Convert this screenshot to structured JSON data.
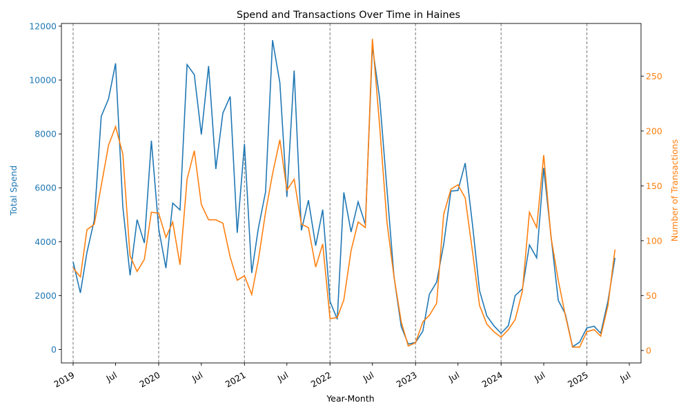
{
  "colors": {
    "spend": "#1f77b4",
    "transactions": "#ff7f0e",
    "axis": "#000000",
    "year_line": "#808080"
  },
  "chart_data": {
    "type": "line",
    "title": "Spend and Transactions Over Time in Haines",
    "xlabel": "Year-Month",
    "ylabel_left": "Total Spend",
    "ylabel_right": "Number of Transactions",
    "ylim_left": [
      -500,
      12100
    ],
    "ylim_right": [
      -11.4,
      298
    ],
    "yticks_left": [
      0,
      2000,
      4000,
      6000,
      8000,
      10000,
      12000
    ],
    "yticks_right": [
      0,
      50,
      100,
      150,
      200,
      250
    ],
    "xlim": [
      "2018-11-12",
      "2025-08-20"
    ],
    "xticks": [
      {
        "date": "2019-01-01",
        "label": "2019"
      },
      {
        "date": "2019-07-01",
        "label": "Jul"
      },
      {
        "date": "2020-01-01",
        "label": "2020"
      },
      {
        "date": "2020-07-01",
        "label": "Jul"
      },
      {
        "date": "2021-01-01",
        "label": "2021"
      },
      {
        "date": "2021-07-01",
        "label": "Jul"
      },
      {
        "date": "2022-01-01",
        "label": "2022"
      },
      {
        "date": "2022-07-01",
        "label": "Jul"
      },
      {
        "date": "2023-01-01",
        "label": "2023"
      },
      {
        "date": "2023-07-01",
        "label": "Jul"
      },
      {
        "date": "2024-01-01",
        "label": "2024"
      },
      {
        "date": "2024-07-01",
        "label": "Jul"
      },
      {
        "date": "2025-01-01",
        "label": "2025"
      },
      {
        "date": "2025-07-01",
        "label": "Jul"
      }
    ],
    "year_lines": [
      "2019-01-01",
      "2020-01-01",
      "2021-01-01",
      "2022-01-01",
      "2023-01-01",
      "2024-01-01",
      "2025-01-01"
    ],
    "x": [
      "2019-01-01",
      "2019-02-01",
      "2019-03-01",
      "2019-04-01",
      "2019-05-01",
      "2019-06-01",
      "2019-07-01",
      "2019-08-01",
      "2019-09-01",
      "2019-10-01",
      "2019-11-01",
      "2019-12-01",
      "2020-01-01",
      "2020-02-01",
      "2020-03-01",
      "2020-04-01",
      "2020-05-01",
      "2020-06-01",
      "2020-07-01",
      "2020-08-01",
      "2020-09-01",
      "2020-10-01",
      "2020-11-01",
      "2020-12-01",
      "2021-01-01",
      "2021-02-01",
      "2021-03-01",
      "2021-04-01",
      "2021-05-01",
      "2021-06-01",
      "2021-07-01",
      "2021-08-01",
      "2021-09-01",
      "2021-10-01",
      "2021-11-01",
      "2021-12-01",
      "2022-01-01",
      "2022-02-01",
      "2022-03-01",
      "2022-04-01",
      "2022-05-01",
      "2022-06-01",
      "2022-07-01",
      "2022-08-01",
      "2022-09-01",
      "2022-10-01",
      "2022-11-01",
      "2022-12-01",
      "2023-01-01",
      "2023-02-01",
      "2023-03-01",
      "2023-04-01",
      "2023-05-01",
      "2023-06-01",
      "2023-07-01",
      "2023-08-01",
      "2023-09-01",
      "2023-10-01",
      "2023-11-01",
      "2023-12-01",
      "2024-01-01",
      "2024-02-01",
      "2024-03-01",
      "2024-04-01",
      "2024-05-01",
      "2024-06-01",
      "2024-07-01",
      "2024-08-01",
      "2024-09-01",
      "2024-10-01",
      "2024-11-01",
      "2024-12-01",
      "2025-01-01",
      "2025-02-01",
      "2025-03-01",
      "2025-04-01",
      "2025-05-01"
    ],
    "series": [
      {
        "name": "Total Spend",
        "axis": "left",
        "values": [
          3250,
          2100,
          3600,
          4800,
          8650,
          9300,
          10620,
          5300,
          2750,
          4820,
          3950,
          7750,
          4480,
          3020,
          5430,
          5180,
          10570,
          10200,
          7980,
          10520,
          6700,
          8770,
          9390,
          4330,
          7630,
          2840,
          4480,
          5850,
          11480,
          9900,
          5660,
          10350,
          4420,
          5540,
          3850,
          5190,
          1780,
          1120,
          5830,
          4360,
          5480,
          4640,
          11250,
          9300,
          5950,
          2700,
          850,
          200,
          260,
          680,
          2050,
          2500,
          3900,
          5880,
          5900,
          6920,
          4630,
          2180,
          1250,
          880,
          600,
          880,
          2000,
          2250,
          3880,
          3400,
          6740,
          4200,
          1820,
          1320,
          100,
          270,
          800,
          860,
          600,
          1800,
          3400
        ]
      },
      {
        "name": "Number of Transactions",
        "axis": "right",
        "values": [
          75,
          67,
          110,
          115,
          150,
          187,
          204,
          179,
          86,
          72,
          83,
          126,
          125,
          103,
          117,
          78,
          156,
          182,
          133,
          119,
          119,
          116,
          85,
          64,
          68,
          51,
          82,
          126,
          161,
          192,
          146,
          156,
          115,
          112,
          76,
          97,
          29,
          30,
          46,
          91,
          117,
          112,
          284,
          204,
          117,
          67,
          26,
          4,
          7,
          26,
          32,
          43,
          124,
          147,
          151,
          139,
          90,
          41,
          24,
          17,
          12,
          19,
          28,
          54,
          126,
          112,
          178,
          103,
          64,
          32,
          3,
          3,
          17,
          19,
          13,
          41,
          92
        ]
      }
    ]
  }
}
